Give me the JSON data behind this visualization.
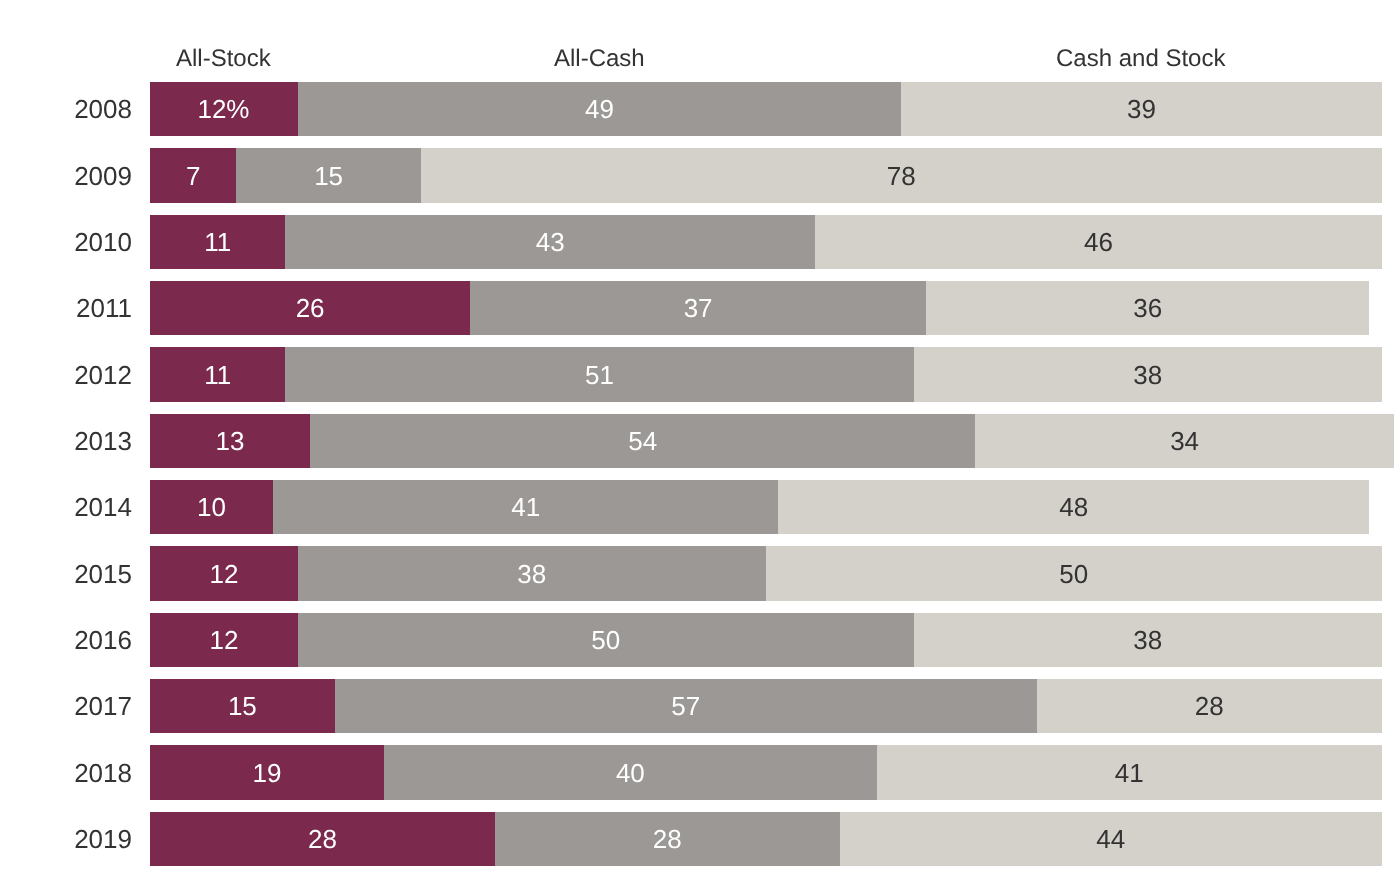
{
  "chart_data": {
    "type": "bar",
    "orientation": "horizontal",
    "stacked": true,
    "categories": [
      "2008",
      "2009",
      "2010",
      "2011",
      "2012",
      "2013",
      "2014",
      "2015",
      "2016",
      "2017",
      "2018",
      "2019"
    ],
    "series": [
      {
        "name": "All-Stock",
        "color": "#7b2a4e",
        "values": [
          12,
          7,
          11,
          26,
          11,
          13,
          10,
          12,
          12,
          15,
          19,
          28
        ],
        "value_labels": [
          "12%",
          "7",
          "11",
          "26",
          "11",
          "13",
          "10",
          "12",
          "12",
          "15",
          "19",
          "28"
        ]
      },
      {
        "name": "All-Cash",
        "color": "#9b9896",
        "values": [
          49,
          15,
          43,
          37,
          51,
          54,
          41,
          38,
          50,
          57,
          40,
          28
        ],
        "value_labels": [
          "49",
          "15",
          "43",
          "37",
          "51",
          "54",
          "41",
          "38",
          "50",
          "57",
          "40",
          "28"
        ]
      },
      {
        "name": "Cash and Stock",
        "color": "#d4d0ca",
        "values": [
          39,
          78,
          46,
          36,
          38,
          34,
          48,
          50,
          38,
          28,
          41,
          44
        ],
        "value_labels": [
          "39",
          "78",
          "46",
          "36",
          "38",
          "34",
          "48",
          "50",
          "38",
          "28",
          "41",
          "44"
        ]
      }
    ],
    "xlim": [
      0,
      101
    ],
    "tick_labels": "y",
    "legend": false
  }
}
